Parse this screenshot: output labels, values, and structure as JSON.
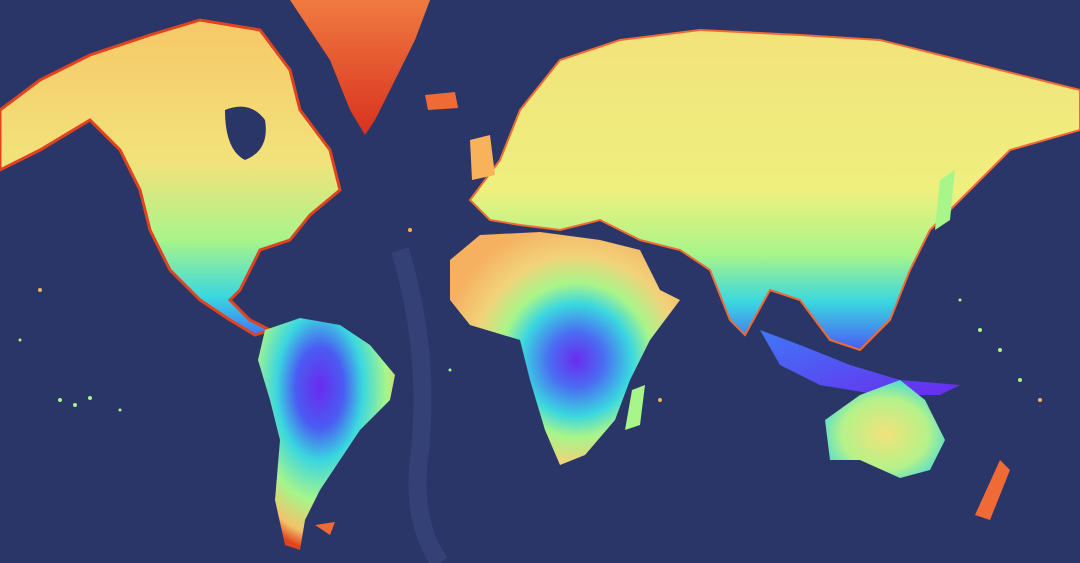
{
  "map": {
    "projection": "mercator",
    "ocean_color": "#2b3668",
    "ocean_shallow_color": "#4a5a8e",
    "palette": [
      "#6a2bef",
      "#3f78f5",
      "#3ad7e0",
      "#a8f58a",
      "#f2ea7a",
      "#f7b25a",
      "#f06a35",
      "#d8321e"
    ],
    "regions": [
      {
        "name": "north-america",
        "dominant": "#f2e27a"
      },
      {
        "name": "greenland",
        "dominant": "#f06a35"
      },
      {
        "name": "south-america",
        "dominant": "#6a2bef"
      },
      {
        "name": "eurasia",
        "dominant": "#f2e27a"
      },
      {
        "name": "africa",
        "dominant": "#f2c36a"
      },
      {
        "name": "australia",
        "dominant": "#b5f28a"
      }
    ]
  }
}
